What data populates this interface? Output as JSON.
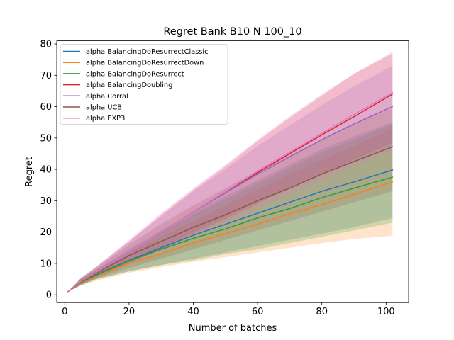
{
  "chart_data": {
    "type": "line",
    "title": "Regret Bank B10 N 100_10",
    "xlabel": "Number of batches",
    "ylabel": "Regret",
    "xlim": [
      -2.5,
      107
    ],
    "ylim": [
      -2.5,
      81
    ],
    "xticks": [
      0,
      20,
      40,
      60,
      80,
      100
    ],
    "yticks": [
      0,
      10,
      20,
      30,
      40,
      50,
      60,
      70,
      80
    ],
    "legend_position": "upper-left",
    "series": [
      {
        "name": "alpha BalancingDoResurrectClassic",
        "color": "#1f77b4",
        "x": [
          1,
          5,
          10,
          20,
          30,
          40,
          50,
          60,
          70,
          80,
          90,
          102
        ],
        "values": [
          1.0,
          4.0,
          6.5,
          11.0,
          15.0,
          19.0,
          22.5,
          26.0,
          29.5,
          33.0,
          36.0,
          39.8
        ],
        "lower": [
          1.0,
          3.0,
          5.0,
          7.5,
          9.5,
          11.5,
          13.5,
          15.5,
          17.5,
          19.5,
          21.5,
          24.5
        ],
        "upper": [
          1.0,
          5.0,
          8.0,
          14.5,
          20.5,
          26.5,
          31.5,
          36.5,
          41.5,
          46.5,
          50.5,
          55.0
        ]
      },
      {
        "name": "alpha BalancingDoResurrectDown",
        "color": "#ff7f0e",
        "x": [
          1,
          5,
          10,
          20,
          30,
          40,
          50,
          60,
          70,
          80,
          90,
          102
        ],
        "values": [
          1.0,
          3.8,
          6.0,
          10.0,
          13.0,
          16.5,
          19.5,
          22.5,
          25.8,
          28.8,
          32.0,
          36.0
        ],
        "lower": [
          1.0,
          3.0,
          4.5,
          7.0,
          8.8,
          10.5,
          12.0,
          13.5,
          15.0,
          16.5,
          17.8,
          18.8
        ],
        "upper": [
          1.0,
          4.8,
          7.5,
          13.5,
          18.5,
          23.5,
          28.5,
          33.5,
          38.5,
          43.0,
          47.5,
          53.0
        ]
      },
      {
        "name": "alpha BalancingDoResurrect",
        "color": "#2ca02c",
        "x": [
          1,
          5,
          10,
          20,
          30,
          40,
          50,
          60,
          70,
          80,
          90,
          102
        ],
        "values": [
          1.0,
          4.0,
          6.3,
          10.8,
          14.5,
          18.0,
          21.0,
          24.5,
          27.5,
          31.0,
          34.0,
          37.5
        ],
        "lower": [
          1.0,
          3.0,
          5.0,
          7.5,
          9.5,
          11.0,
          13.0,
          14.5,
          16.5,
          18.5,
          20.5,
          23.0
        ],
        "upper": [
          1.0,
          5.0,
          8.0,
          14.0,
          20.0,
          25.5,
          30.5,
          35.5,
          40.5,
          45.5,
          49.5,
          54.5
        ]
      },
      {
        "name": "alpha BalancingDoubling",
        "color": "#d62728",
        "x": [
          1,
          5,
          10,
          20,
          30,
          40,
          50,
          60,
          70,
          80,
          90,
          102
        ],
        "values": [
          1.0,
          4.3,
          7.3,
          13.5,
          20.0,
          26.5,
          32.5,
          39.0,
          45.0,
          51.0,
          56.8,
          64.0
        ],
        "lower": [
          1.0,
          3.3,
          5.5,
          10.0,
          14.5,
          19.5,
          24.0,
          29.0,
          34.0,
          38.5,
          43.0,
          48.5
        ],
        "upper": [
          1.0,
          5.3,
          9.0,
          17.0,
          25.5,
          33.5,
          41.0,
          49.0,
          56.5,
          63.5,
          70.5,
          77.0
        ]
      },
      {
        "name": "alpha Corral",
        "color": "#9467bd",
        "x": [
          1,
          5,
          10,
          20,
          30,
          40,
          50,
          60,
          70,
          80,
          90,
          102
        ],
        "values": [
          1.0,
          4.3,
          7.2,
          13.5,
          20.0,
          26.5,
          32.5,
          38.5,
          44.0,
          49.5,
          54.5,
          60.0
        ],
        "lower": [
          1.0,
          3.3,
          5.5,
          10.0,
          15.0,
          20.0,
          25.0,
          29.5,
          34.0,
          38.5,
          42.5,
          47.0
        ],
        "upper": [
          1.0,
          5.3,
          9.0,
          17.0,
          25.0,
          33.0,
          40.0,
          47.5,
          54.0,
          60.5,
          66.5,
          73.0
        ]
      },
      {
        "name": "alpha UCB",
        "color": "#8c564b",
        "x": [
          1,
          5,
          10,
          20,
          30,
          40,
          50,
          60,
          70,
          80,
          90,
          102
        ],
        "values": [
          1.0,
          4.2,
          7.0,
          12.5,
          17.0,
          21.5,
          25.5,
          30.0,
          34.0,
          38.5,
          42.5,
          47.2
        ],
        "lower": [
          1.0,
          3.2,
          5.3,
          8.5,
          11.5,
          14.5,
          17.5,
          20.5,
          23.5,
          26.5,
          29.5,
          33.0
        ],
        "upper": [
          1.0,
          5.2,
          8.7,
          16.0,
          22.5,
          28.5,
          34.0,
          39.5,
          44.5,
          49.5,
          54.5,
          59.5
        ]
      },
      {
        "name": "alpha EXP3",
        "color": "#e377c2",
        "x": [
          1,
          5,
          10,
          20,
          30,
          40,
          50,
          60,
          70,
          80,
          90,
          102
        ],
        "values": [
          1.0,
          4.3,
          7.3,
          13.5,
          20.0,
          26.5,
          33.0,
          39.5,
          45.5,
          51.5,
          57.5,
          64.5
        ],
        "lower": [
          1.0,
          3.3,
          5.5,
          9.5,
          14.0,
          18.5,
          23.0,
          27.5,
          32.0,
          36.5,
          41.0,
          46.0
        ],
        "upper": [
          1.0,
          5.3,
          9.2,
          17.5,
          26.0,
          34.0,
          41.5,
          49.5,
          57.0,
          64.0,
          70.5,
          77.5
        ]
      }
    ]
  }
}
